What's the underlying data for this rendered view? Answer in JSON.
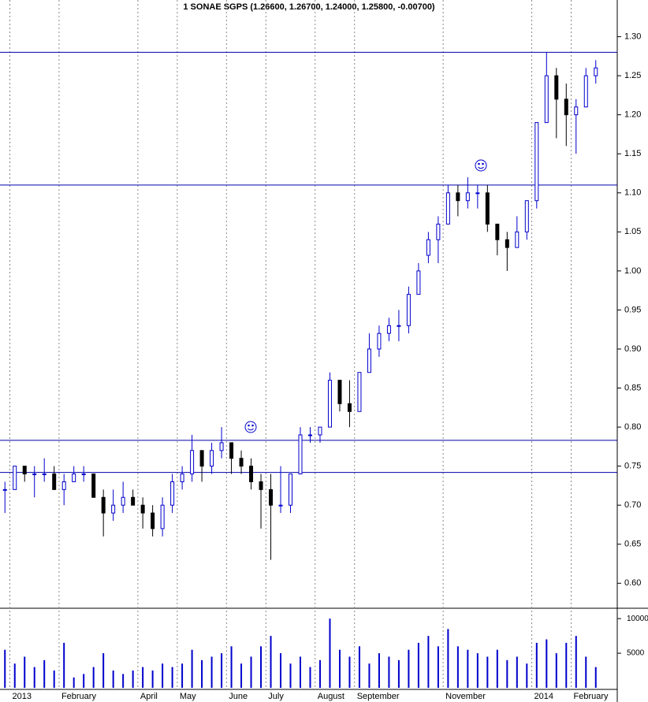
{
  "chart_data": [
    {
      "type": "candlestick",
      "title": "1 SONAE SGPS (1.26600, 1.26700, 1.24000, 1.25800, -0.00700)",
      "categories": [
        null,
        "2013",
        null,
        null,
        null,
        null,
        "February",
        null,
        null,
        null,
        null,
        null,
        null,
        null,
        "April",
        null,
        null,
        null,
        "May",
        null,
        null,
        null,
        null,
        "June",
        null,
        null,
        null,
        "July",
        null,
        null,
        null,
        null,
        "August",
        null,
        null,
        null,
        "September",
        null,
        null,
        null,
        null,
        null,
        null,
        null,
        null,
        "November",
        null,
        null,
        null,
        null,
        null,
        null,
        null,
        null,
        "2014",
        null,
        null,
        null,
        "February",
        null,
        null
      ],
      "open": [
        0.72,
        0.72,
        0.75,
        0.74,
        0.74,
        0.74,
        0.72,
        0.73,
        0.74,
        0.74,
        0.71,
        0.69,
        0.7,
        0.71,
        0.7,
        0.69,
        0.67,
        0.7,
        0.73,
        0.74,
        0.77,
        0.75,
        0.77,
        0.78,
        0.76,
        0.75,
        0.73,
        0.72,
        0.7,
        0.7,
        0.74,
        0.79,
        0.79,
        0.8,
        0.86,
        0.83,
        0.82,
        0.87,
        0.9,
        0.92,
        0.93,
        0.93,
        0.97,
        1.02,
        1.04,
        1.06,
        1.1,
        1.09,
        1.1,
        1.1,
        1.06,
        1.04,
        1.03,
        1.05,
        1.09,
        1.19,
        1.25,
        1.22,
        1.2,
        1.21,
        1.25
      ],
      "high": [
        0.73,
        0.75,
        0.75,
        0.75,
        0.76,
        0.75,
        0.74,
        0.75,
        0.75,
        0.74,
        0.72,
        0.72,
        0.73,
        0.72,
        0.71,
        0.7,
        0.71,
        0.74,
        0.75,
        0.79,
        0.77,
        0.78,
        0.8,
        0.78,
        0.77,
        0.76,
        0.74,
        0.74,
        0.75,
        0.74,
        0.8,
        0.8,
        0.8,
        0.87,
        0.86,
        0.86,
        0.87,
        0.92,
        0.93,
        0.94,
        0.95,
        0.98,
        1.01,
        1.05,
        1.07,
        1.11,
        1.11,
        1.12,
        1.11,
        1.11,
        1.06,
        1.05,
        1.07,
        1.09,
        1.19,
        1.28,
        1.26,
        1.24,
        1.22,
        1.26,
        1.27
      ],
      "low": [
        0.69,
        0.72,
        0.73,
        0.71,
        0.73,
        0.72,
        0.7,
        0.73,
        0.73,
        0.71,
        0.66,
        0.68,
        0.69,
        0.7,
        0.67,
        0.66,
        0.66,
        0.69,
        0.72,
        0.73,
        0.73,
        0.74,
        0.76,
        0.74,
        0.74,
        0.72,
        0.67,
        0.63,
        0.69,
        0.69,
        0.74,
        0.78,
        0.78,
        0.8,
        0.82,
        0.8,
        0.82,
        0.87,
        0.89,
        0.91,
        0.91,
        0.92,
        0.97,
        1.01,
        1.01,
        1.06,
        1.07,
        1.08,
        1.08,
        1.05,
        1.02,
        1.0,
        1.03,
        1.04,
        1.08,
        1.19,
        1.17,
        1.16,
        1.15,
        1.21,
        1.24
      ],
      "close": [
        0.72,
        0.75,
        0.74,
        0.74,
        0.74,
        0.72,
        0.73,
        0.74,
        0.74,
        0.71,
        0.69,
        0.7,
        0.71,
        0.7,
        0.69,
        0.67,
        0.7,
        0.73,
        0.74,
        0.77,
        0.75,
        0.77,
        0.78,
        0.76,
        0.75,
        0.73,
        0.72,
        0.7,
        0.7,
        0.74,
        0.79,
        0.79,
        0.8,
        0.86,
        0.83,
        0.82,
        0.87,
        0.9,
        0.92,
        0.93,
        0.93,
        0.97,
        1.0,
        1.04,
        1.06,
        1.1,
        1.09,
        1.1,
        1.1,
        1.06,
        1.04,
        1.03,
        1.05,
        1.09,
        1.19,
        1.25,
        1.22,
        1.2,
        1.21,
        1.25,
        1.26
      ],
      "up_color": "#0000cc",
      "down_color": "#000000",
      "ylim": [
        0.568,
        1.347
      ],
      "yticks": [
        {
          "value": 0.6,
          "label": "0.60"
        },
        {
          "value": 0.65,
          "label": "0.65"
        },
        {
          "value": 0.7,
          "label": "0.70"
        },
        {
          "value": 0.75,
          "label": "0.75"
        },
        {
          "value": 0.8,
          "label": "0.80"
        },
        {
          "value": 0.85,
          "label": "0.85"
        },
        {
          "value": 0.9,
          "label": "0.90"
        },
        {
          "value": 0.95,
          "label": "0.95"
        },
        {
          "value": 1.0,
          "label": "1.00"
        },
        {
          "value": 1.05,
          "label": "1.05"
        },
        {
          "value": 1.1,
          "label": "1.10"
        },
        {
          "value": 1.15,
          "label": "1.15"
        },
        {
          "value": 1.2,
          "label": "1.20"
        },
        {
          "value": 1.25,
          "label": "1.25"
        },
        {
          "value": 1.3,
          "label": "1.30"
        }
      ],
      "hlines": [
        1.28,
        1.11,
        0.783,
        0.742
      ],
      "hline_color": "#0000aa"
    },
    {
      "type": "bar",
      "values": [
        5500,
        3500,
        4500,
        3000,
        4000,
        2500,
        6500,
        1500,
        2000,
        3000,
        5000,
        2500,
        2000,
        2500,
        3000,
        2500,
        3500,
        3000,
        3500,
        5500,
        4000,
        4500,
        5000,
        6000,
        3500,
        4500,
        6000,
        7500,
        5000,
        3500,
        4500,
        3000,
        4000,
        10000,
        5500,
        4500,
        6000,
        3500,
        5000,
        4500,
        4000,
        5500,
        6500,
        7500,
        6000,
        8500,
        6000,
        5500,
        5000,
        4500,
        5500,
        4000,
        4500,
        3500,
        6500,
        7000,
        5000,
        6500,
        7500,
        4500,
        3000
      ],
      "color": "#0000cc",
      "ylim": [
        0,
        11500
      ],
      "yticks": [
        5000,
        10000
      ]
    }
  ]
}
